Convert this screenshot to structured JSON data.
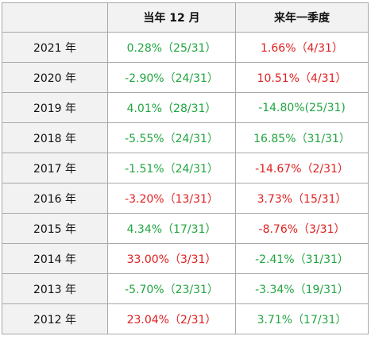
{
  "table": {
    "headers": [
      "",
      "当年 12 月",
      "来年一季度"
    ],
    "colors": {
      "up": "#e02020",
      "down": "#21a541"
    },
    "rows": [
      {
        "year": "2021 年",
        "dec": "0.28%（25/31）",
        "dec_dir": "down",
        "q1": "1.66%（4/31）",
        "q1_dir": "up"
      },
      {
        "year": "2020 年",
        "dec": "-2.90%（24/31）",
        "dec_dir": "down",
        "q1": "10.51%（4/31）",
        "q1_dir": "up"
      },
      {
        "year": "2019 年",
        "dec": "4.01%（28/31）",
        "dec_dir": "down",
        "q1": "-14.80%(25/31)",
        "q1_dir": "down"
      },
      {
        "year": "2018 年",
        "dec": "-5.55%（24/31）",
        "dec_dir": "down",
        "q1": "16.85%（31/31）",
        "q1_dir": "down"
      },
      {
        "year": "2017 年",
        "dec": "-1.51%（24/31）",
        "dec_dir": "down",
        "q1": "-14.67%（2/31）",
        "q1_dir": "up"
      },
      {
        "year": "2016 年",
        "dec": "-3.20%（13/31）",
        "dec_dir": "up",
        "q1": "3.73%（15/31）",
        "q1_dir": "up"
      },
      {
        "year": "2015 年",
        "dec": "4.34%（17/31）",
        "dec_dir": "down",
        "q1": "-8.76%（3/31）",
        "q1_dir": "up"
      },
      {
        "year": "2014 年",
        "dec": "33.00%（3/31）",
        "dec_dir": "up",
        "q1": "-2.41%（31/31）",
        "q1_dir": "down"
      },
      {
        "year": "2013 年",
        "dec": "-5.70%（23/31）",
        "dec_dir": "down",
        "q1": "-3.34%（19/31）",
        "q1_dir": "down"
      },
      {
        "year": "2012 年",
        "dec": "23.04%（2/31）",
        "dec_dir": "up",
        "q1": "3.71%（17/31）",
        "q1_dir": "down"
      }
    ]
  }
}
